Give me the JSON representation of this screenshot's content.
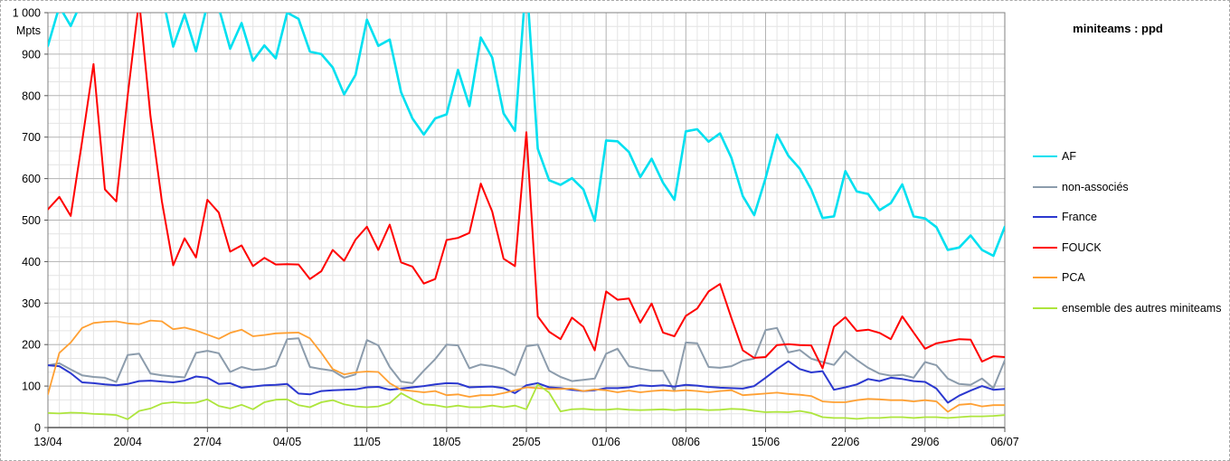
{
  "window": {
    "background": "#ffffff",
    "selection_border": "dashed"
  },
  "title": "miniteams : ppd",
  "y_axis": {
    "unit_label": "Mpts",
    "tick_labels": [
      "1 000",
      "900",
      "800",
      "700",
      "600",
      "500",
      "400",
      "300",
      "200",
      "100",
      "0"
    ],
    "tick_values": [
      1000,
      900,
      800,
      700,
      600,
      500,
      400,
      300,
      200,
      100,
      0
    ]
  },
  "x_axis": {
    "tick_labels": [
      "13/04",
      "20/04",
      "27/04",
      "04/05",
      "11/05",
      "18/05",
      "25/05",
      "01/06",
      "08/06",
      "15/06",
      "22/06",
      "29/06",
      "06/07"
    ],
    "tick_every_days": 7
  },
  "legend": {
    "position": "right",
    "items": [
      {
        "label": "AF",
        "color": "#00e0f0"
      },
      {
        "label": "non-associés",
        "color": "#8c9cac"
      },
      {
        "label": "France",
        "color": "#2b38cf"
      },
      {
        "label": "FOUCK",
        "color": "#ff0000"
      },
      {
        "label": "PCA",
        "color": "#ffa033"
      },
      {
        "label": "ensemble des autres miniteams",
        "color": "#ade53c"
      }
    ]
  },
  "chart_data": {
    "type": "line",
    "title": "miniteams : ppd",
    "ylabel": "Mpts",
    "ylim": [
      0,
      1000
    ],
    "grid": {
      "major_x_days": 7,
      "minor_x_days": 1,
      "major_y": 100,
      "minor_y": 33.33
    },
    "note": "daily values estimated from pixels; values above 1000 are clipped by the plot top edge",
    "x": [
      "13/04",
      "14/04",
      "15/04",
      "16/04",
      "17/04",
      "18/04",
      "19/04",
      "20/04",
      "21/04",
      "22/04",
      "23/04",
      "24/04",
      "25/04",
      "26/04",
      "27/04",
      "28/04",
      "29/04",
      "30/04",
      "01/05",
      "02/05",
      "03/05",
      "04/05",
      "05/05",
      "06/05",
      "07/05",
      "08/05",
      "09/05",
      "10/05",
      "11/05",
      "12/05",
      "13/05",
      "14/05",
      "15/05",
      "16/05",
      "17/05",
      "18/05",
      "19/05",
      "20/05",
      "21/05",
      "22/05",
      "23/05",
      "24/05",
      "25/05",
      "26/05",
      "27/05",
      "28/05",
      "29/05",
      "30/05",
      "31/05",
      "01/06",
      "02/06",
      "03/06",
      "04/06",
      "05/06",
      "06/06",
      "07/06",
      "08/06",
      "09/06",
      "10/06",
      "11/06",
      "12/06",
      "13/06",
      "14/06",
      "15/06",
      "16/06",
      "17/06",
      "18/06",
      "19/06",
      "20/06",
      "21/06",
      "22/06",
      "23/06",
      "24/06",
      "25/06",
      "26/06",
      "27/06",
      "28/06",
      "29/06",
      "30/06",
      "01/07",
      "02/07",
      "03/07",
      "04/07",
      "05/07",
      "06/07"
    ],
    "series": [
      {
        "name": "AF",
        "color": "#00e0f0",
        "width": 2.6,
        "values": [
          920,
          1015,
          968,
          1030,
          1060,
          1040,
          1055,
          1035,
          1050,
          1030,
          1045,
          918,
          996,
          907,
          1020,
          1012,
          913,
          975,
          884,
          921,
          890,
          1000,
          985,
          906,
          900,
          868,
          803,
          850,
          983,
          920,
          935,
          808,
          745,
          706,
          745,
          755,
          862,
          775,
          940,
          892,
          757,
          715,
          1085,
          672,
          596,
          585,
          601,
          574,
          498,
          692,
          690,
          664,
          604,
          648,
          590,
          549,
          714,
          719,
          689,
          709,
          650,
          558,
          512,
          601,
          706,
          655,
          624,
          574,
          505,
          509,
          618,
          569,
          563,
          524,
          541,
          586,
          509,
          504,
          483,
          428,
          434,
          463,
          428,
          414,
          484
        ]
      },
      {
        "name": "non-associés",
        "color": "#8c9cac",
        "width": 2,
        "values": [
          150,
          155,
          140,
          126,
          122,
          120,
          110,
          175,
          178,
          130,
          126,
          123,
          121,
          180,
          185,
          179,
          134,
          146,
          139,
          141,
          149,
          213,
          215,
          146,
          141,
          137,
          120,
          128,
          211,
          198,
          146,
          111,
          107,
          137,
          165,
          200,
          198,
          143,
          152,
          148,
          141,
          126,
          196,
          200,
          137,
          122,
          112,
          115,
          118,
          178,
          190,
          148,
          142,
          137,
          137,
          88,
          205,
          203,
          146,
          144,
          148,
          161,
          166,
          235,
          240,
          181,
          187,
          166,
          158,
          151,
          185,
          163,
          144,
          130,
          125,
          127,
          120,
          158,
          150,
          118,
          105,
          103,
          118,
          95,
          162
        ]
      },
      {
        "name": "France",
        "color": "#2b38cf",
        "width": 2,
        "values": [
          150,
          148,
          131,
          109,
          107,
          104,
          102,
          105,
          112,
          113,
          111,
          109,
          113,
          123,
          120,
          105,
          107,
          96,
          99,
          102,
          103,
          105,
          82,
          80,
          88,
          90,
          91,
          92,
          97,
          98,
          91,
          94,
          97,
          100,
          104,
          107,
          106,
          97,
          98,
          99,
          95,
          83,
          102,
          107,
          97,
          95,
          91,
          88,
          90,
          95,
          95,
          97,
          102,
          100,
          102,
          99,
          103,
          101,
          98,
          96,
          95,
          94,
          100,
          120,
          141,
          160,
          141,
          133,
          136,
          91,
          97,
          104,
          117,
          112,
          120,
          117,
          112,
          110,
          94,
          60,
          77,
          89,
          100,
          91,
          93
        ]
      },
      {
        "name": "FOUCK",
        "color": "#ff0000",
        "width": 2,
        "values": [
          526,
          556,
          510,
          690,
          876,
          574,
          545,
          800,
          1030,
          750,
          545,
          391,
          456,
          410,
          549,
          518,
          424,
          439,
          389,
          409,
          393,
          394,
          393,
          358,
          377,
          428,
          402,
          453,
          484,
          428,
          489,
          398,
          388,
          347,
          358,
          452,
          457,
          469,
          588,
          521,
          407,
          389,
          712,
          268,
          231,
          213,
          265,
          243,
          186,
          328,
          308,
          311,
          253,
          299,
          229,
          220,
          269,
          287,
          328,
          346,
          264,
          186,
          168,
          170,
          199,
          201,
          199,
          198,
          143,
          243,
          266,
          233,
          236,
          228,
          213,
          268,
          229,
          190,
          203,
          208,
          213,
          212,
          159,
          172,
          170
        ]
      },
      {
        "name": "PCA",
        "color": "#ffa033",
        "width": 1.8,
        "values": [
          80,
          180,
          205,
          240,
          252,
          255,
          256,
          251,
          249,
          258,
          256,
          237,
          241,
          234,
          224,
          214,
          228,
          236,
          220,
          223,
          227,
          228,
          229,
          215,
          180,
          141,
          128,
          133,
          135,
          134,
          107,
          91,
          88,
          85,
          88,
          78,
          80,
          74,
          78,
          78,
          83,
          90,
          97,
          95,
          93,
          93,
          94,
          88,
          92,
          90,
          85,
          89,
          85,
          88,
          90,
          88,
          90,
          88,
          85,
          88,
          90,
          78,
          80,
          82,
          84,
          81,
          79,
          76,
          63,
          61,
          61,
          66,
          69,
          68,
          66,
          66,
          63,
          66,
          63,
          38,
          55,
          57,
          51,
          54,
          54
        ]
      },
      {
        "name": "ensemble des autres miniteams",
        "color": "#ade53c",
        "width": 1.8,
        "values": [
          35,
          34,
          36,
          35,
          33,
          32,
          30,
          20,
          40,
          46,
          58,
          61,
          59,
          60,
          68,
          52,
          46,
          55,
          44,
          61,
          67,
          68,
          54,
          49,
          61,
          66,
          56,
          51,
          49,
          51,
          59,
          83,
          68,
          56,
          54,
          49,
          53,
          49,
          49,
          53,
          49,
          53,
          44,
          104,
          84,
          39,
          44,
          45,
          43,
          43,
          45,
          43,
          42,
          43,
          44,
          42,
          44,
          44,
          42,
          43,
          45,
          44,
          40,
          37,
          38,
          37,
          40,
          35,
          25,
          23,
          23,
          21,
          23,
          23,
          25,
          25,
          23,
          25,
          25,
          23,
          25,
          27,
          27,
          28,
          30
        ]
      }
    ],
    "colors": {
      "grid_major": "#b3b3b3",
      "grid_minor": "#e4e4e4",
      "plot_border": "#808080",
      "axis_line": "#555555",
      "text": "#000000"
    }
  }
}
